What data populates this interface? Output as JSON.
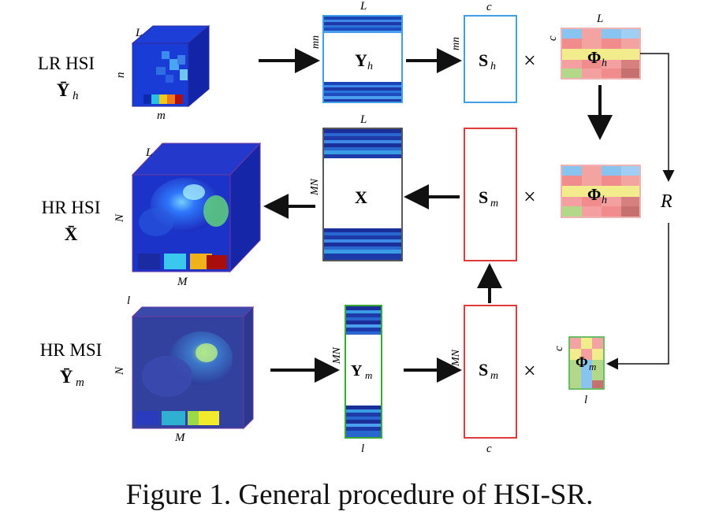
{
  "rows": [
    {
      "label_line1": "LR HSI",
      "label_line2": "Ȳ",
      "label_sub": "h"
    },
    {
      "label_line1": "HR HSI",
      "label_line2": "X̄",
      "label_sub": ""
    },
    {
      "label_line1": "HR MSI",
      "label_line2": "Ȳ",
      "label_sub": "m"
    }
  ],
  "cube_axes": {
    "lr": {
      "top": "L",
      "side": "n",
      "bottom": "m"
    },
    "hr": {
      "top": "L",
      "side": "N",
      "bottom": "M"
    },
    "msi": {
      "top": "l",
      "side": "N",
      "bottom": "M"
    }
  },
  "matrices": {
    "yh": {
      "main": "Y",
      "sub": "h",
      "top": "L",
      "side": "mn"
    },
    "x": {
      "main": "X",
      "top": "L",
      "side": "MN"
    },
    "ym": {
      "main": "Y",
      "sub": "m",
      "side": "MN",
      "bottom": "l"
    },
    "sh": {
      "main": "S",
      "sub": "h",
      "top": "c",
      "side": "mn"
    },
    "sm_mid": {
      "main": "S",
      "sub": "m"
    },
    "sm_bot": {
      "main": "S",
      "sub": "m",
      "side": "MN",
      "bottom": "c"
    },
    "phi_top": {
      "main": "Φ",
      "sub": "h",
      "top": "L",
      "side": "c"
    },
    "phi_mid": {
      "main": "Φ",
      "sub": "h"
    },
    "phi_bot": {
      "main": "Φ",
      "sub": "m",
      "side": "c",
      "bottom": "l"
    }
  },
  "times_symbol": "×",
  "response_symbol": "R",
  "colors": {
    "blue_frame": "#3fa0e6",
    "red_frame": "#e03a3a",
    "green_frame": "#3aa835",
    "cube_dark": "#1a2fb0",
    "stripe": "#1c5fc8"
  },
  "caption": "Figure 1. General procedure of HSI-SR."
}
